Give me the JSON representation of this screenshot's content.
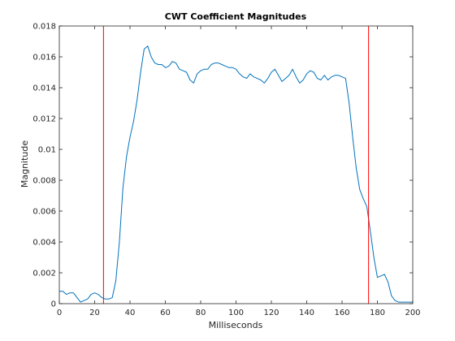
{
  "chart_data": {
    "type": "line",
    "title": "CWT Coefficient Magnitudes",
    "xlabel": "Milliseconds",
    "ylabel": "Magnitude",
    "xlim": [
      0,
      200
    ],
    "ylim": [
      0,
      0.018
    ],
    "xticks": [
      0,
      20,
      40,
      60,
      80,
      100,
      120,
      140,
      160,
      180,
      200
    ],
    "yticks": [
      0,
      0.002,
      0.004,
      0.006,
      0.008,
      0.01,
      0.012,
      0.014,
      0.016,
      0.018
    ],
    "ytick_labels": [
      "0",
      "0.002",
      "0.004",
      "0.006",
      "0.008",
      "0.01",
      "0.012",
      "0.014",
      "0.016",
      "0.018"
    ],
    "grid": false,
    "series": [
      {
        "color": "#0072BD",
        "x": [
          0,
          2,
          4,
          6,
          8,
          10,
          12,
          14,
          16,
          18,
          20,
          22,
          24,
          26,
          28,
          30,
          32,
          34,
          36,
          38,
          40,
          42,
          44,
          46,
          48,
          50,
          52,
          54,
          56,
          58,
          60,
          62,
          64,
          66,
          68,
          70,
          72,
          74,
          76,
          78,
          80,
          82,
          84,
          86,
          88,
          90,
          92,
          94,
          96,
          98,
          100,
          102,
          104,
          106,
          108,
          110,
          112,
          114,
          116,
          118,
          120,
          122,
          124,
          126,
          128,
          130,
          132,
          134,
          136,
          138,
          140,
          142,
          144,
          146,
          148,
          150,
          152,
          154,
          156,
          158,
          160,
          162,
          164,
          166,
          168,
          170,
          172,
          174,
          176,
          178,
          180,
          182,
          184,
          186,
          188,
          190,
          192,
          194,
          196,
          198,
          200
        ],
        "y": [
          0.0008,
          0.0008,
          0.0006,
          0.0007,
          0.0007,
          0.0004,
          0.0001,
          0.0002,
          0.0003,
          0.0006,
          0.0007,
          0.0006,
          0.0004,
          0.0003,
          0.0003,
          0.0004,
          0.0015,
          0.004,
          0.0075,
          0.0095,
          0.0108,
          0.0118,
          0.0132,
          0.015,
          0.0165,
          0.0167,
          0.016,
          0.0156,
          0.0155,
          0.0155,
          0.0153,
          0.0154,
          0.0157,
          0.0156,
          0.0152,
          0.0151,
          0.015,
          0.0145,
          0.0143,
          0.0149,
          0.0151,
          0.0152,
          0.0152,
          0.0155,
          0.0156,
          0.0156,
          0.0155,
          0.0154,
          0.0153,
          0.0153,
          0.0152,
          0.0149,
          0.0147,
          0.0146,
          0.0149,
          0.0147,
          0.0146,
          0.0145,
          0.0143,
          0.0146,
          0.015,
          0.0152,
          0.0148,
          0.0144,
          0.0146,
          0.0148,
          0.0152,
          0.0147,
          0.0143,
          0.0145,
          0.0149,
          0.0151,
          0.015,
          0.0146,
          0.0145,
          0.0148,
          0.0145,
          0.0147,
          0.0148,
          0.0148,
          0.0147,
          0.0146,
          0.013,
          0.0108,
          0.0088,
          0.0074,
          0.0068,
          0.0063,
          0.0047,
          0.003,
          0.0017,
          0.0018,
          0.0019,
          0.0014,
          0.0005,
          0.0002,
          0.0001,
          0.0001,
          0.0001,
          0.0001,
          0.0001
        ]
      }
    ],
    "vlines": [
      {
        "x": 25,
        "color": "#FF0000"
      },
      {
        "x": 175,
        "color": "#FF0000"
      }
    ]
  }
}
